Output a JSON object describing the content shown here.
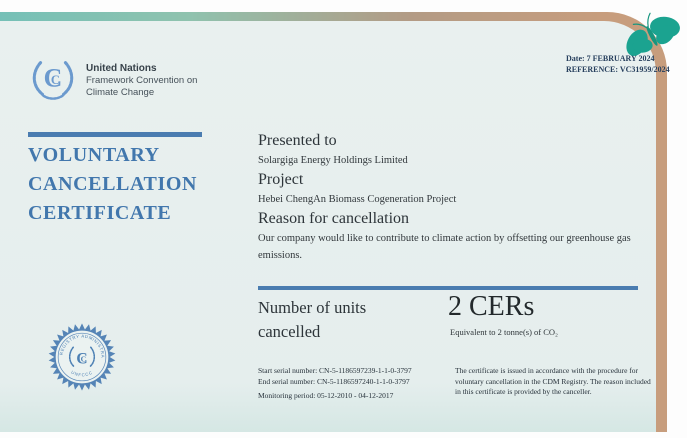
{
  "header": {
    "date": "Date: 7 FEBRUARY 2024",
    "reference": "REFERENCE: VC31959/2024",
    "un_name": "United Nations",
    "un_line1": "Framework Convention on",
    "un_line2": "Climate Change"
  },
  "title": {
    "line1": "VOLUNTARY",
    "line2": "CANCELLATION",
    "line3": "CERTIFICATE"
  },
  "body": {
    "presented_heading": "Presented to",
    "presented_value": "Solargiga Energy Holdings Limited",
    "project_heading": "Project",
    "project_value": "Hebei ChengAn Biomass Cogeneration Project",
    "reason_heading": "Reason for cancellation",
    "reason_value": "Our company would like to contribute to climate action by offsetting our greenhouse gas emissions."
  },
  "units": {
    "heading_line1": "Number of units",
    "heading_line2": "cancelled",
    "value": "2 CERs",
    "equivalent": "Equivalent to 2 tonne(s) of CO₂"
  },
  "footer": {
    "start_serial": "Start serial number: CN-5-1186597239-1-1-0-3797",
    "end_serial": "End serial number: CN-5-1186597240-1-1-0-3797",
    "monitoring_period": "Monitoring period: 05-12-2010 - 04-12-2017",
    "disclaimer": "The certificate is issued in accordance with the procedure for voluntary cancellation in the CDM Registry. The reason included in this certificate is provided by the canceller."
  },
  "seal": {
    "top_text": "CDM REGISTRY ADMINISTRATOR",
    "bottom_text": "UNFCCC",
    "logo_letter": "C"
  },
  "icons": {
    "butterfly": "teal-butterfly",
    "un_emblem": "unfccc-cc-laurel-emblem",
    "seal": "cdm-registry-starburst-seal"
  },
  "colors": {
    "accent_blue": "#4a7cb0",
    "title_blue": "#4277ad",
    "teal": "#1ba390",
    "tan": "#c79d7d",
    "logo_blue": "#6b9ace",
    "certificate_bg": "#e6eeed"
  }
}
